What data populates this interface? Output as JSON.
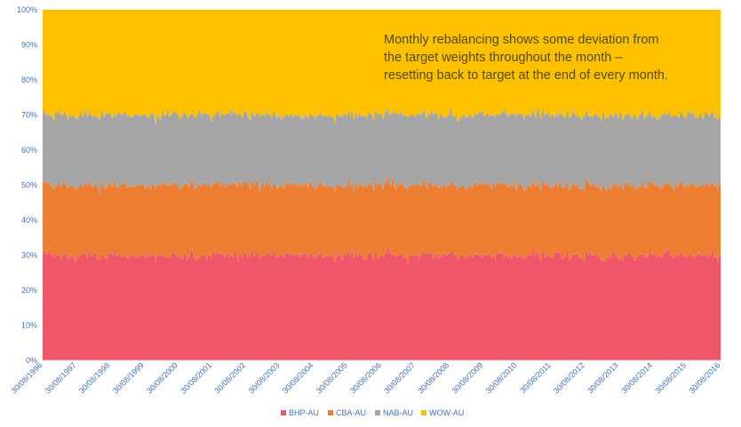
{
  "chart_data": {
    "type": "area",
    "stacked": true,
    "normalized": true,
    "title": "",
    "xlabel": "",
    "ylabel": "",
    "ylim": [
      0,
      100
    ],
    "y_ticks": [
      "0%",
      "10%",
      "20%",
      "30%",
      "40%",
      "50%",
      "60%",
      "70%",
      "80%",
      "90%",
      "100%"
    ],
    "x_ticks": [
      "30/08/1996",
      "30/08/1997",
      "30/08/1998",
      "30/08/1999",
      "30/08/2000",
      "30/08/2001",
      "30/08/2002",
      "30/08/2003",
      "30/08/2004",
      "30/08/2005",
      "30/08/2006",
      "30/08/2007",
      "30/08/2008",
      "30/08/2009",
      "30/08/2010",
      "30/08/2011",
      "30/08/2012",
      "30/08/2013",
      "30/08/2014",
      "30/08/2015",
      "30/08/2016"
    ],
    "x_range": [
      "30/08/1996",
      "30/08/2016"
    ],
    "grid": false,
    "legend_position": "bottom",
    "series": [
      {
        "name": "BHP-AU",
        "color": "#f0566a",
        "target_weight": 30,
        "approx_range": [
          26,
          34
        ]
      },
      {
        "name": "CBA-AU",
        "color": "#ed7d31",
        "target_weight": 20,
        "approx_range": [
          17,
          23
        ]
      },
      {
        "name": "NAB-AU",
        "color": "#a5a5a5",
        "target_weight": 20,
        "approx_range": [
          17,
          23
        ]
      },
      {
        "name": "WOW-AU",
        "color": "#ffc000",
        "target_weight": 30,
        "approx_range": [
          27,
          35
        ]
      }
    ],
    "annotation": [
      "Monthly rebalancing shows some deviation from",
      "the target weights throughout the month –",
      "resetting back to target at the end of every month."
    ]
  }
}
